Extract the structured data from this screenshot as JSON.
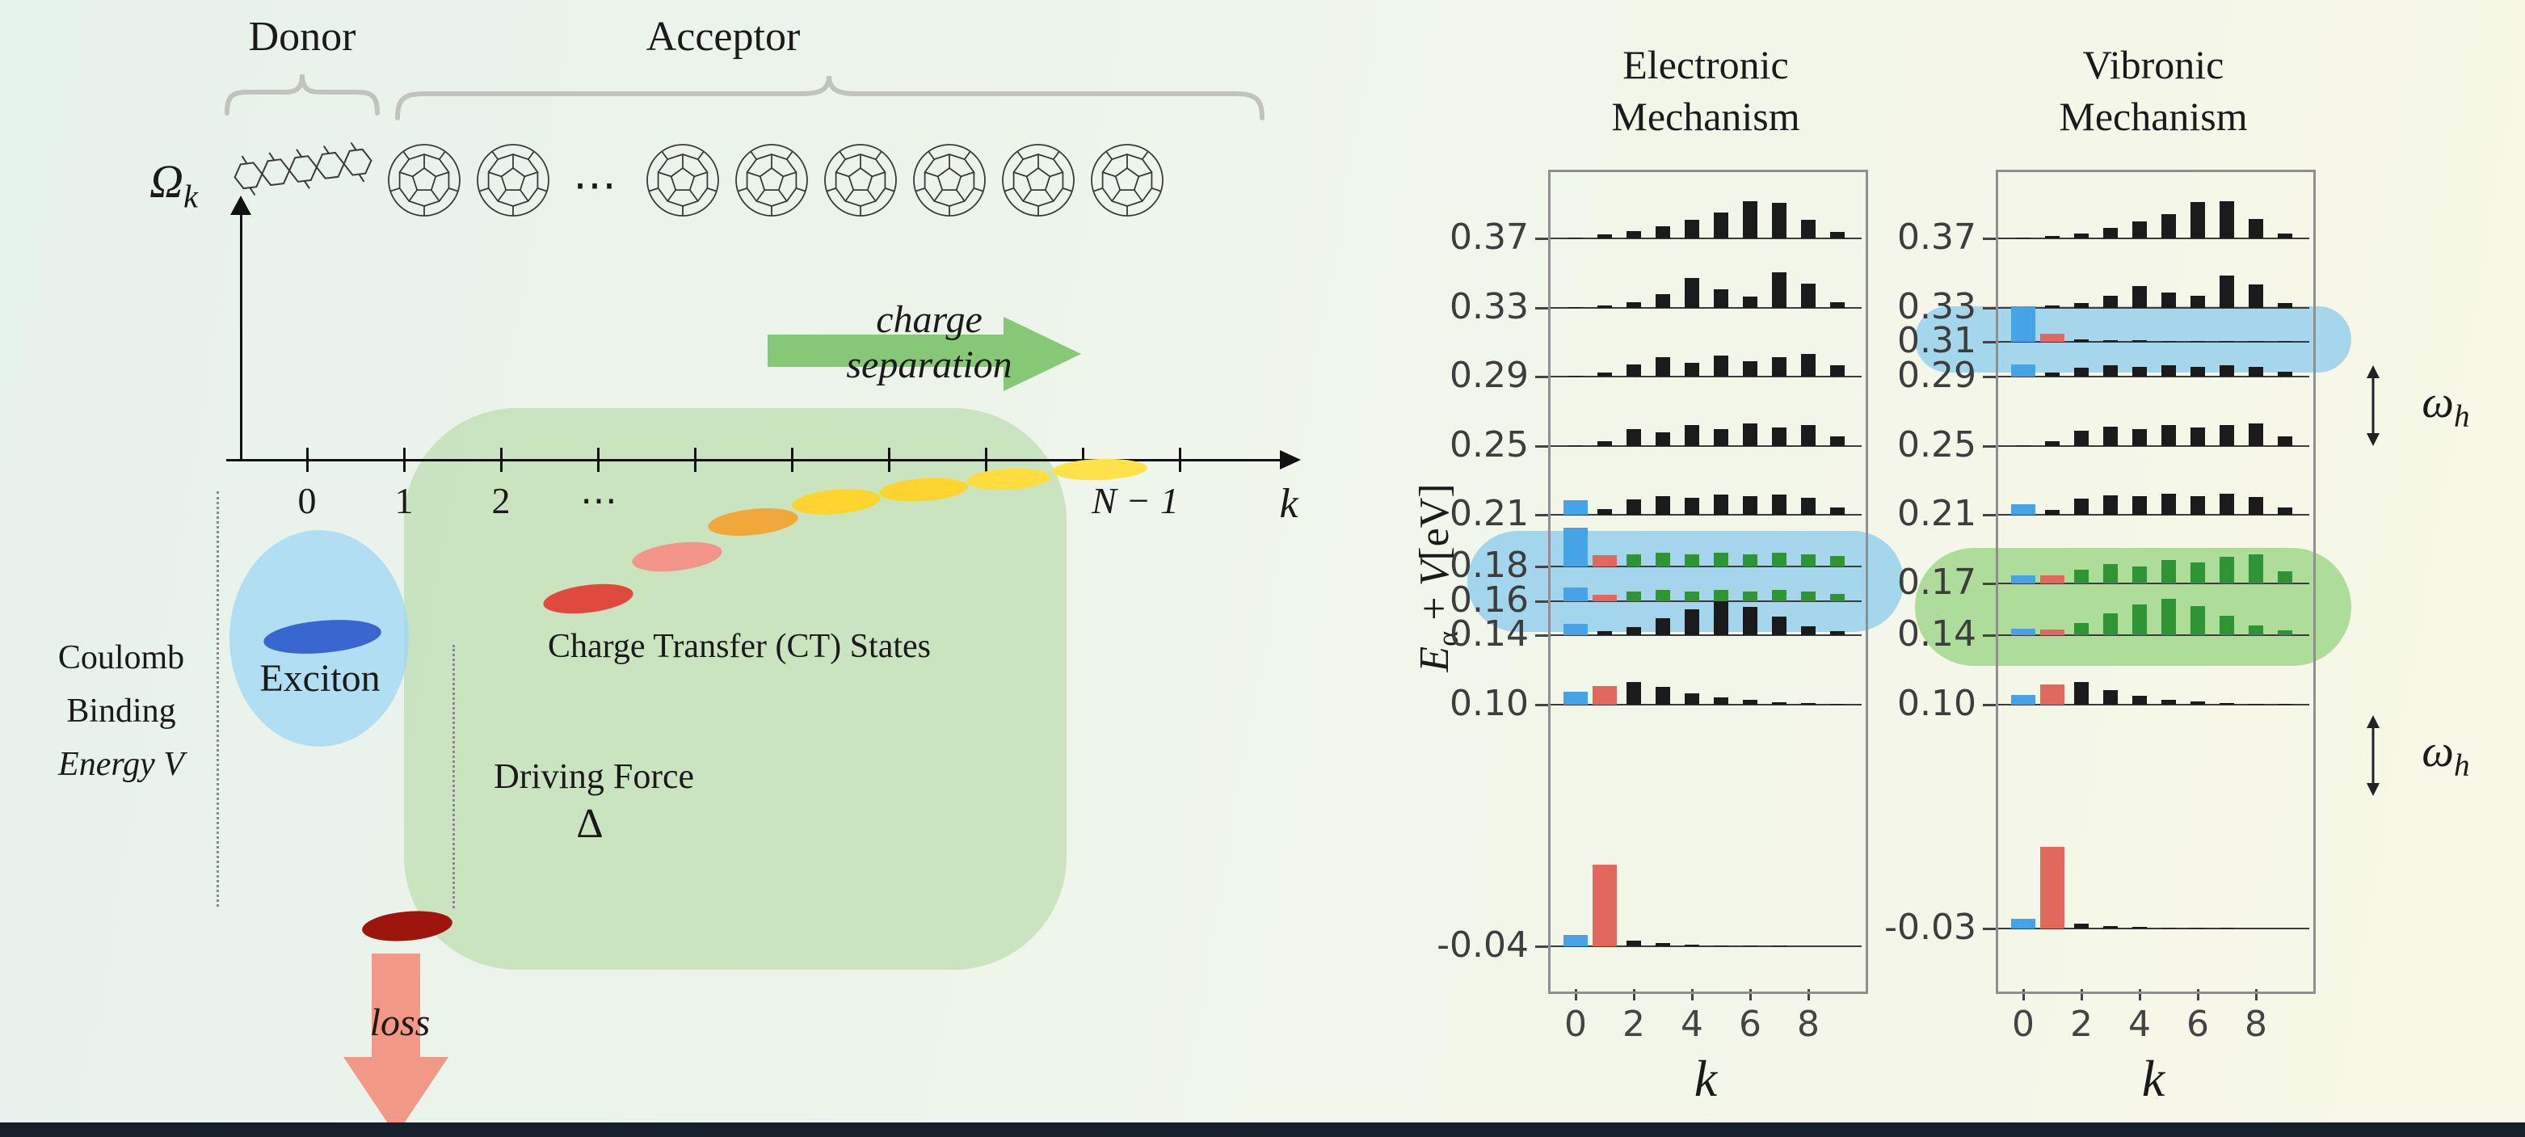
{
  "palette": {
    "bar_black": "#1b1b1b",
    "bar_blue": "#45a3e6",
    "bar_red": "#e0685c",
    "bar_green": "#2f9433",
    "highlight_blue": "#6fc0ee",
    "highlight_green": "#7ecb67",
    "region_green": "#a8d494",
    "region_blue": "#9dd7f4",
    "arrow_green": "#74bf62",
    "arrow_red": "#f2907d",
    "exciton_blob": "#3a66cf",
    "ground_blob": "#9e150e",
    "brace_gray": "#c0c4bd",
    "footer_bar": "#16202c"
  },
  "schematic": {
    "donor_label": "Donor",
    "acceptor_label": "Acceptor",
    "molecule_ellipsis": "⋯",
    "y_axis": {
      "symbol": "Ω",
      "subscript": "k"
    },
    "x_axis": {
      "tick_labels": [
        "0",
        "1",
        "2",
        "⋯",
        "N − 1"
      ],
      "axis_label": "k"
    },
    "charge_separation": {
      "line1": "charge",
      "line2": "separation"
    },
    "exciton_label": "Exciton",
    "ct_states_label": "Charge Transfer (CT) States",
    "coulomb": {
      "line1": "Coulomb",
      "line2": "Binding",
      "line3": "Energy V"
    },
    "driving_force": {
      "label": "Driving Force",
      "symbol": "Δ"
    },
    "loss_label": "loss",
    "ct_blob_colors": [
      "#e04a3e",
      "#f2958a",
      "#f0a83a",
      "#ffd42e",
      "#ffd42e",
      "#ffdd3e",
      "#ffe14a"
    ]
  },
  "charts": {
    "ylabel": {
      "E": "E",
      "sub": "α",
      "mid": "+",
      "V": "V",
      "unit": "[eV]"
    },
    "xlabel": "k",
    "omega": {
      "symbol": "ω",
      "subscript": "h"
    }
  },
  "chart_data": [
    {
      "type": "bar",
      "title": "Electronic Mechanism",
      "title_lines": [
        "Electronic",
        "Mechanism"
      ],
      "xlabel": "k",
      "ylabel": "E_alpha + V [eV]",
      "x": [
        0,
        1,
        2,
        3,
        4,
        5,
        6,
        7,
        8,
        9
      ],
      "x_ticks": [
        0,
        2,
        4,
        6,
        8
      ],
      "ylim": [
        -0.065,
        0.41
      ],
      "legend": "bar colors: blue = k0 exciton weight, red = k1 CT weight, green = highlighted delocalized CT states, black = acceptor-site weight",
      "rows": [
        {
          "energy": 0.37,
          "label": "0.37",
          "values": [
            0.02,
            0.1,
            0.2,
            0.32,
            0.5,
            0.7,
            1.0,
            0.95,
            0.5,
            0.18
          ]
        },
        {
          "energy": 0.33,
          "label": "0.33",
          "values": [
            0.02,
            0.07,
            0.16,
            0.38,
            0.8,
            0.5,
            0.3,
            0.95,
            0.65,
            0.15
          ]
        },
        {
          "energy": 0.29,
          "label": "0.29",
          "values": [
            0.02,
            0.1,
            0.32,
            0.52,
            0.38,
            0.56,
            0.42,
            0.52,
            0.6,
            0.3
          ]
        },
        {
          "energy": 0.25,
          "label": "0.25",
          "values": [
            0.03,
            0.12,
            0.46,
            0.36,
            0.56,
            0.46,
            0.6,
            0.5,
            0.56,
            0.26
          ]
        },
        {
          "energy": 0.21,
          "label": "0.21",
          "values": [
            0.4,
            0.15,
            0.42,
            0.5,
            0.46,
            0.55,
            0.5,
            0.55,
            0.46,
            0.2
          ],
          "colors": [
            "b",
            "k",
            "k",
            "k",
            "k",
            "k",
            "k",
            "k",
            "k",
            "k"
          ]
        },
        {
          "energy": 0.18,
          "label": "0.18",
          "values": [
            1.05,
            0.3,
            0.33,
            0.38,
            0.33,
            0.38,
            0.33,
            0.38,
            0.33,
            0.28
          ],
          "colors": [
            "b",
            "r",
            "g",
            "g",
            "g",
            "g",
            "g",
            "g",
            "g",
            "g"
          ]
        },
        {
          "energy": 0.16,
          "label": "0.16",
          "values": [
            0.38,
            0.18,
            0.26,
            0.3,
            0.26,
            0.3,
            0.26,
            0.3,
            0.26,
            0.2
          ],
          "colors": [
            "b",
            "r",
            "g",
            "g",
            "g",
            "g",
            "g",
            "g",
            "g",
            "g"
          ]
        },
        {
          "energy": 0.14,
          "label": "0.14",
          "values": [
            0.3,
            0.1,
            0.22,
            0.45,
            0.7,
            0.92,
            0.75,
            0.5,
            0.24,
            0.1
          ],
          "colors": [
            "b",
            "k",
            "k",
            "k",
            "k",
            "k",
            "k",
            "k",
            "k",
            "k"
          ]
        },
        {
          "energy": 0.1,
          "label": "0.10",
          "values": [
            0.35,
            0.5,
            0.6,
            0.48,
            0.3,
            0.2,
            0.12,
            0.07,
            0.04,
            0.02
          ],
          "colors": [
            "b",
            "r",
            "k",
            "k",
            "k",
            "k",
            "k",
            "k",
            "k",
            "k"
          ]
        },
        {
          "energy": -0.04,
          "label": "-0.04",
          "values": [
            0.3,
            2.2,
            0.16,
            0.08,
            0.05,
            0.03,
            0.02,
            0.02,
            0.01,
            0.01
          ],
          "colors": [
            "b",
            "r",
            "k",
            "k",
            "k",
            "k",
            "k",
            "k",
            "k",
            "k"
          ]
        }
      ],
      "highlights": [
        {
          "color": "blue",
          "row_labels": [
            "0.18",
            "0.16"
          ]
        }
      ]
    },
    {
      "type": "bar",
      "title": "Vibronic Mechanism",
      "title_lines": [
        "Vibronic",
        "Mechanism"
      ],
      "xlabel": "k",
      "ylabel": "E_alpha + V [eV]",
      "x": [
        0,
        1,
        2,
        3,
        4,
        5,
        6,
        7,
        8,
        9
      ],
      "x_ticks": [
        0,
        2,
        4,
        6,
        8
      ],
      "ylim": [
        -0.065,
        0.41
      ],
      "legend": "bar colors: blue = k0 exciton weight, red = k1 CT weight, green = highlighted delocalized CT states, black = acceptor-site weight",
      "rows": [
        {
          "energy": 0.37,
          "label": "0.37",
          "values": [
            0.02,
            0.07,
            0.14,
            0.28,
            0.45,
            0.65,
            0.98,
            1.0,
            0.52,
            0.14
          ]
        },
        {
          "energy": 0.33,
          "label": "0.33",
          "values": [
            0.02,
            0.06,
            0.14,
            0.32,
            0.58,
            0.42,
            0.32,
            0.88,
            0.62,
            0.14
          ]
        },
        {
          "energy": 0.31,
          "label": "0.31",
          "values": [
            0.95,
            0.22,
            0.06,
            0.05,
            0.04,
            0.03,
            0.03,
            0.02,
            0.02,
            0.02
          ],
          "colors": [
            "b",
            "r",
            "k",
            "k",
            "k",
            "k",
            "k",
            "k",
            "k",
            "k"
          ]
        },
        {
          "energy": 0.29,
          "label": "0.29",
          "values": [
            0.32,
            0.1,
            0.24,
            0.3,
            0.26,
            0.3,
            0.26,
            0.3,
            0.26,
            0.14
          ],
          "colors": [
            "b",
            "k",
            "k",
            "k",
            "k",
            "k",
            "k",
            "k",
            "k",
            "k"
          ]
        },
        {
          "energy": 0.25,
          "label": "0.25",
          "values": [
            0.03,
            0.12,
            0.42,
            0.52,
            0.46,
            0.56,
            0.5,
            0.56,
            0.6,
            0.26
          ]
        },
        {
          "energy": 0.21,
          "label": "0.21",
          "values": [
            0.28,
            0.14,
            0.44,
            0.52,
            0.5,
            0.56,
            0.5,
            0.56,
            0.48,
            0.2
          ],
          "colors": [
            "b",
            "k",
            "k",
            "k",
            "k",
            "k",
            "k",
            "k",
            "k",
            "k"
          ]
        },
        {
          "energy": 0.17,
          "label": "0.17",
          "values": [
            0.22,
            0.22,
            0.38,
            0.52,
            0.46,
            0.62,
            0.56,
            0.72,
            0.78,
            0.32
          ],
          "colors": [
            "b",
            "r",
            "g",
            "g",
            "g",
            "g",
            "g",
            "g",
            "g",
            "g"
          ]
        },
        {
          "energy": 0.14,
          "label": "0.14",
          "values": [
            0.18,
            0.16,
            0.32,
            0.58,
            0.82,
            0.98,
            0.78,
            0.52,
            0.26,
            0.12
          ],
          "colors": [
            "b",
            "r",
            "g",
            "g",
            "g",
            "g",
            "g",
            "g",
            "g",
            "g"
          ]
        },
        {
          "energy": 0.1,
          "label": "0.10",
          "values": [
            0.25,
            0.55,
            0.6,
            0.4,
            0.24,
            0.14,
            0.08,
            0.05,
            0.03,
            0.02
          ],
          "colors": [
            "b",
            "r",
            "k",
            "k",
            "k",
            "k",
            "k",
            "k",
            "k",
            "k"
          ]
        },
        {
          "energy": -0.03,
          "label": "-0.03",
          "values": [
            0.25,
            2.2,
            0.12,
            0.06,
            0.04,
            0.03,
            0.02,
            0.02,
            0.01,
            0.01
          ],
          "colors": [
            "b",
            "r",
            "k",
            "k",
            "k",
            "k",
            "k",
            "k",
            "k",
            "k"
          ]
        }
      ],
      "highlights": [
        {
          "color": "blue",
          "row_labels": [
            "0.31"
          ]
        },
        {
          "color": "green",
          "row_labels": [
            "0.17",
            "0.14"
          ]
        }
      ]
    }
  ]
}
